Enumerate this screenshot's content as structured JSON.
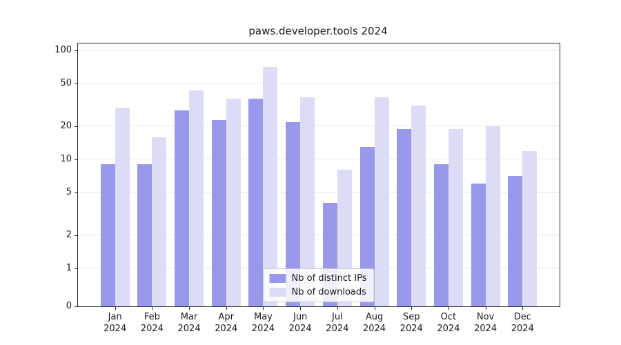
{
  "title": "paws.developer.tools 2024",
  "chart_data": {
    "type": "bar",
    "title": "paws.developer.tools 2024",
    "yscale": "log",
    "grid": true,
    "legend_position": "lower center",
    "yticks": [
      0,
      1,
      2,
      5,
      10,
      20,
      50,
      100
    ],
    "ylim": [
      0,
      120
    ],
    "x_labels": [
      [
        "Jan",
        "2024"
      ],
      [
        "Feb",
        "2024"
      ],
      [
        "Mar",
        "2024"
      ],
      [
        "Apr",
        "2024"
      ],
      [
        "May",
        "2024"
      ],
      [
        "Jun",
        "2024"
      ],
      [
        "Jul",
        "2024"
      ],
      [
        "Aug",
        "2024"
      ],
      [
        "Sep",
        "2024"
      ],
      [
        "Oct",
        "2024"
      ],
      [
        "Nov",
        "2024"
      ],
      [
        "Dec",
        "2024"
      ]
    ],
    "series": [
      {
        "name": "Nb of distinct IPs",
        "color": "#9999ec",
        "values": [
          9,
          9,
          28,
          23,
          36,
          22,
          4,
          13,
          19,
          9,
          6,
          7
        ]
      },
      {
        "name": "Nb of downloads",
        "color": "#dcdcf7",
        "values": [
          30,
          16,
          43,
          36,
          70,
          37,
          8,
          37,
          31,
          19,
          20,
          12
        ]
      }
    ]
  }
}
